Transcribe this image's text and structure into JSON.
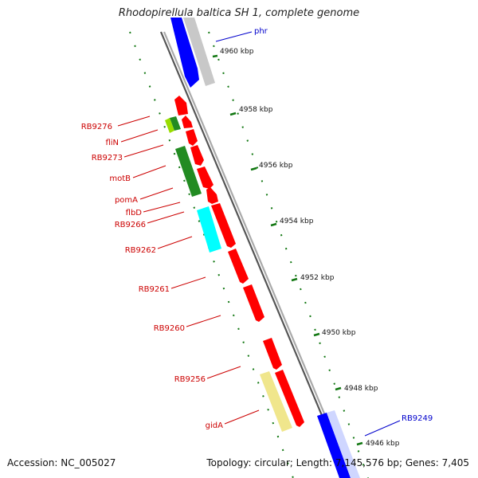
{
  "title": "Rhodopirellula baltica SH 1, complete genome",
  "footer": {
    "accession": "Accession: NC_005027",
    "stats": "Topology: circular; Length: 7,145,576 bp; Genes: 7,405"
  },
  "ticks": [
    "4960 kbp",
    "4958 kbp",
    "4956 kbp",
    "4954 kbp",
    "4952 kbp",
    "4950 kbp",
    "4948 kbp",
    "4946 kbp"
  ],
  "gene_labels": [
    {
      "text": "phr",
      "color": "#0000cc"
    },
    {
      "text": "RB9276",
      "color": "#cc0000"
    },
    {
      "text": "fliN",
      "color": "#cc0000"
    },
    {
      "text": "RB9273",
      "color": "#cc0000"
    },
    {
      "text": "motB",
      "color": "#cc0000"
    },
    {
      "text": "pomA",
      "color": "#cc0000"
    },
    {
      "text": "flbD",
      "color": "#cc0000"
    },
    {
      "text": "RB9266",
      "color": "#cc0000"
    },
    {
      "text": "RB9262",
      "color": "#cc0000"
    },
    {
      "text": "RB9261",
      "color": "#cc0000"
    },
    {
      "text": "RB9260",
      "color": "#cc0000"
    },
    {
      "text": "RB9256",
      "color": "#cc0000"
    },
    {
      "text": "gidA",
      "color": "#cc0000"
    },
    {
      "text": "RB9249",
      "color": "#0000cc"
    }
  ],
  "colors": {
    "forward_cds": "#ff0000",
    "reverse_blue": "#0000ff",
    "grey_feature": "#c8c8c8",
    "green": "#228b22",
    "lime": "#99dd00",
    "cyan": "#00ffff",
    "khaki": "#f0e68c",
    "tick_green": "#117711",
    "backbone": "#808080"
  }
}
